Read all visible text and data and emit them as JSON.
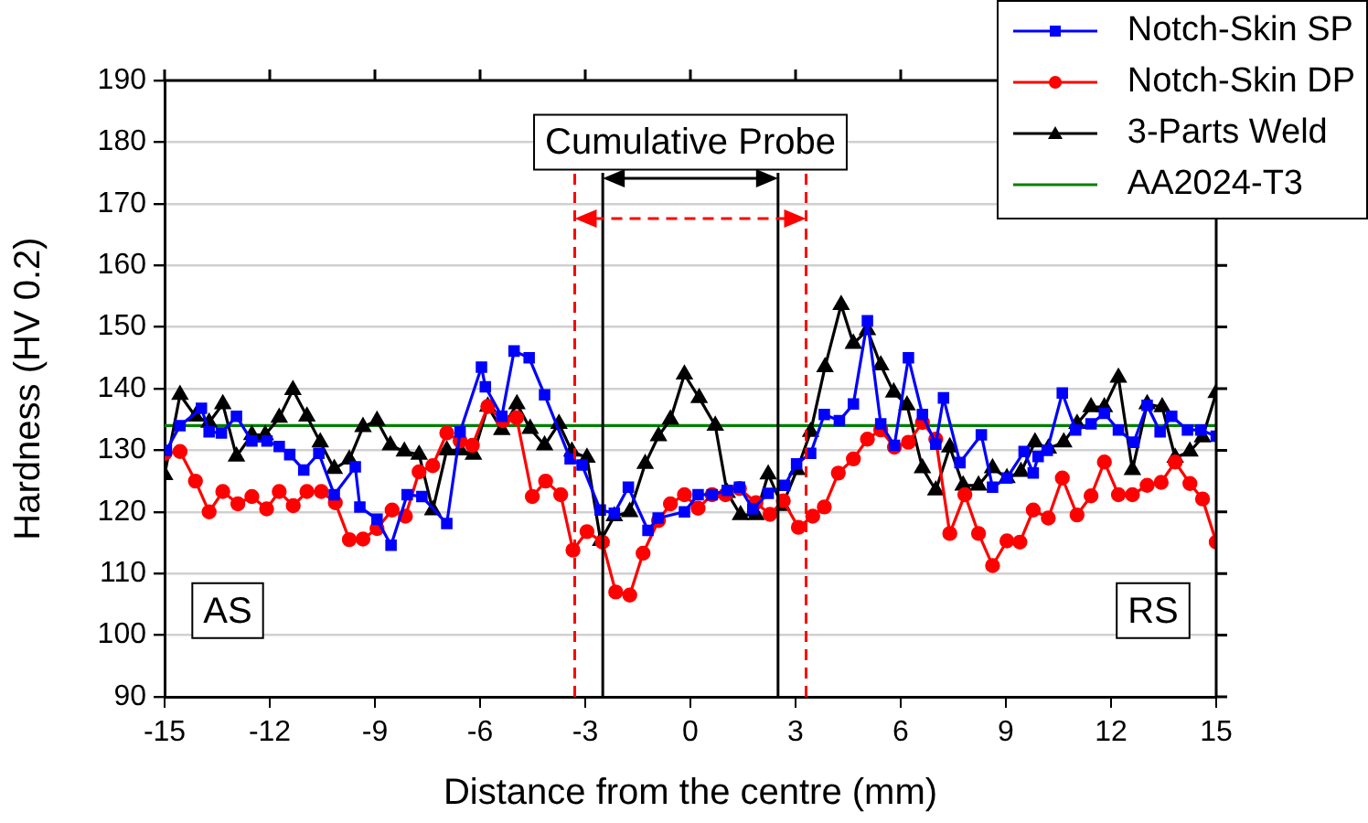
{
  "chart_data": {
    "type": "line",
    "xlabel": "Distance from the centre (mm)",
    "ylabel": "Hardness (HV 0.2)",
    "xlim": [
      -15,
      15
    ],
    "xticks": [
      -15,
      -12,
      -9,
      -6,
      -3,
      0,
      3,
      6,
      9,
      12,
      15
    ],
    "ylim": [
      90,
      190
    ],
    "yticks": [
      90,
      100,
      110,
      120,
      130,
      140,
      150,
      160,
      170,
      180,
      190
    ],
    "grid": "y",
    "legend": "top right",
    "line_style": "solid",
    "series": [
      {
        "name": "Notch-Skin SP",
        "color": "#0000ff",
        "marker": "square",
        "x": [
          -14.95,
          -14.56,
          -13.95,
          -13.73,
          -13.38,
          -12.95,
          -12.51,
          -12.08,
          -11.73,
          -11.43,
          -11.03,
          -10.6,
          -10.16,
          -9.56,
          -9.43,
          -8.94,
          -8.54,
          -8.08,
          -7.66,
          -6.95,
          -6.57,
          -5.96,
          -5.85,
          -5.38,
          -5.03,
          -4.6,
          -4.16,
          -3.43,
          -3.09,
          -2.57,
          -2.17,
          -1.77,
          -1.21,
          -0.92,
          -0.17,
          0.22,
          0.62,
          1.05,
          1.4,
          1.78,
          2.22,
          2.69,
          3.03,
          3.43,
          3.82,
          4.25,
          4.65,
          5.05,
          5.43,
          5.82,
          6.22,
          6.62,
          7.0,
          7.22,
          7.69,
          8.3,
          8.62,
          9.03,
          9.52,
          9.78,
          9.92,
          10.18,
          10.61,
          10.99,
          11.43,
          11.81,
          12.21,
          12.65,
          13.03,
          13.4,
          13.73,
          14.18,
          14.56,
          15.0
        ],
        "values": [
          130,
          134,
          136.8,
          133,
          132.8,
          135.5,
          131.5,
          131.5,
          130.6,
          129.3,
          126.8,
          129.5,
          122.8,
          127.3,
          120.8,
          118.8,
          114.6,
          122.8,
          122.5,
          118.1,
          133,
          143.5,
          140.3,
          135.5,
          146.1,
          145,
          139,
          128.6,
          127.6,
          120.3,
          119.8,
          124,
          117,
          119,
          120,
          122.8,
          122.8,
          123.5,
          124,
          120.5,
          123,
          124.3,
          127.8,
          129.5,
          135.8,
          134.8,
          137.5,
          151,
          134.3,
          130.8,
          145,
          135.8,
          131,
          138.5,
          128,
          132.5,
          124,
          125.5,
          129.8,
          126.3,
          129,
          130,
          139.3,
          133.3,
          134.3,
          136,
          133.3,
          131.3,
          137.3,
          133,
          135.5,
          133.3,
          133.3,
          132.3
        ]
      },
      {
        "name": "Notch-Skin DP",
        "color": "#ff0000",
        "marker": "circle",
        "x": [
          -14.99,
          -14.56,
          -14.12,
          -13.73,
          -13.34,
          -12.91,
          -12.51,
          -12.09,
          -11.73,
          -11.33,
          -10.94,
          -10.53,
          -10.13,
          -9.73,
          -9.34,
          -8.94,
          -8.51,
          -8.13,
          -7.74,
          -7.35,
          -6.95,
          -6.57,
          -6.22,
          -5.78,
          -5.35,
          -4.96,
          -4.51,
          -4.13,
          -3.7,
          -3.35,
          -2.95,
          -2.51,
          -2.13,
          -1.73,
          -1.35,
          -0.91,
          -0.57,
          -0.17,
          0.22,
          0.62,
          1.0,
          1.4,
          1.87,
          2.27,
          2.65,
          3.08,
          3.49,
          3.82,
          4.22,
          4.65,
          5.05,
          5.43,
          5.82,
          6.22,
          6.62,
          7.0,
          7.4,
          7.83,
          8.22,
          8.62,
          9.03,
          9.4,
          9.78,
          10.21,
          10.61,
          11.03,
          11.43,
          11.81,
          12.21,
          12.61,
          13.03,
          13.43,
          13.83,
          14.25,
          14.61,
          15.0
        ],
        "values": [
          129.5,
          129.8,
          125,
          120,
          123.3,
          121.3,
          122.5,
          120.5,
          123.3,
          121,
          123.3,
          123.3,
          121.5,
          115.5,
          115.6,
          117.3,
          120.3,
          119.3,
          126.5,
          127.5,
          132.8,
          131.5,
          130.8,
          137.1,
          134.8,
          135.3,
          122.5,
          125,
          122.8,
          113.8,
          116.8,
          115.1,
          107,
          106.5,
          113.3,
          118.6,
          121.3,
          122.8,
          120.6,
          122.8,
          122.8,
          123.8,
          121.5,
          119.6,
          121.8,
          117.5,
          119.3,
          120.8,
          126.3,
          128.6,
          131.8,
          133.3,
          130.5,
          131.3,
          134.5,
          131.8,
          116.5,
          122.8,
          116.5,
          111.3,
          115.3,
          115.1,
          120.3,
          119,
          125.5,
          119.5,
          122.6,
          128.1,
          122.8,
          122.8,
          124.3,
          124.8,
          128.1,
          124.6,
          122.1,
          115.1
        ]
      },
      {
        "name": "3-Parts Weld",
        "color": "#000000",
        "marker": "triangle",
        "x": [
          -15,
          -14.56,
          -14.12,
          -13.73,
          -13.34,
          -12.95,
          -12.51,
          -12.13,
          -11.73,
          -11.34,
          -10.94,
          -10.56,
          -10.16,
          -9.73,
          -9.34,
          -8.94,
          -8.56,
          -8.16,
          -7.74,
          -7.35,
          -6.95,
          -6.57,
          -6.19,
          -5.78,
          -5.38,
          -4.95,
          -4.57,
          -4.16,
          -3.75,
          -3.38,
          -2.95,
          -2.56,
          -2.17,
          -1.73,
          -1.29,
          -0.91,
          -0.57,
          -0.17,
          0.25,
          0.71,
          1.05,
          1.43,
          1.87,
          2.22,
          2.62,
          3.04,
          3.43,
          3.84,
          4.3,
          4.65,
          5.05,
          5.43,
          5.8,
          6.18,
          6.62,
          7.0,
          7.4,
          7.78,
          8.22,
          8.62,
          9.03,
          9.43,
          9.83,
          10.21,
          10.65,
          11.03,
          11.43,
          11.81,
          12.21,
          12.61,
          13.03,
          13.46,
          13.83,
          14.25,
          14.61,
          15.0
        ],
        "values": [
          126,
          139,
          135.5,
          134.5,
          137.5,
          129,
          132.5,
          132.5,
          135.3,
          139.8,
          135.5,
          131.3,
          127,
          128.5,
          133.8,
          134.8,
          130.8,
          129.8,
          129.3,
          120.3,
          130,
          130,
          129.3,
          137.1,
          133.3,
          137.5,
          133.5,
          130.8,
          134.3,
          129.8,
          128.8,
          115.3,
          119.3,
          120,
          127.8,
          132.3,
          135,
          142.3,
          138.5,
          134,
          123.1,
          119.5,
          119.5,
          126.1,
          121,
          126.8,
          133,
          143.5,
          153.6,
          147.3,
          149.5,
          143.8,
          139.4,
          137.3,
          127.1,
          123.5,
          130.5,
          124.3,
          124.3,
          127.1,
          125.5,
          126.5,
          131.3,
          130.3,
          131.3,
          134.3,
          137,
          137,
          141.8,
          126.8,
          137.5,
          137,
          128.8,
          129.8,
          132.1,
          139.3
        ]
      },
      {
        "name": "AA2024-T3",
        "color": "#008000",
        "marker": "none",
        "x": [
          -15,
          15
        ],
        "values": [
          134,
          134
        ]
      }
    ],
    "ref_lines": [
      {
        "axis": "x",
        "value": -2.5,
        "color": "#000000",
        "line_style": "solid"
      },
      {
        "axis": "x",
        "value": 2.5,
        "color": "#000000",
        "line_style": "solid"
      },
      {
        "axis": "x",
        "value": -3.3,
        "color": "#ff0000",
        "line_style": "dashed"
      },
      {
        "axis": "x",
        "value": 3.3,
        "color": "#ff0000",
        "line_style": "dashed"
      }
    ],
    "annotations": [
      "Cumulative Probe",
      "AS",
      "RS"
    ]
  }
}
